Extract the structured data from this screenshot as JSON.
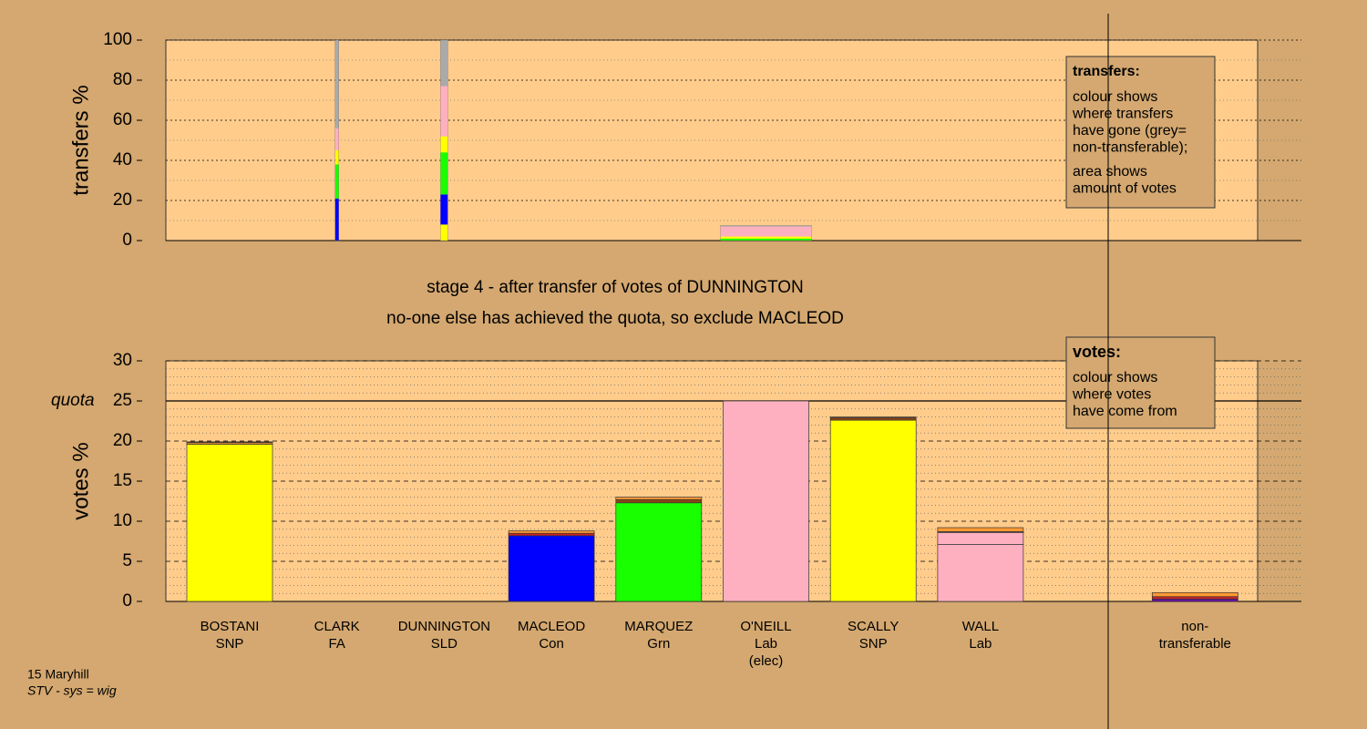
{
  "chart_data": [
    {
      "type": "transfer-columns",
      "ylabel": "transfers %",
      "ylim": [
        0,
        100
      ],
      "yticks": [
        0,
        20,
        40,
        60,
        80,
        100
      ],
      "grid": true,
      "minor_grid_per_tick": 2,
      "columns": [
        null,
        {
          "amount": 0.4,
          "segments": [
            {
              "color": "#0000ff",
              "value": 21
            },
            {
              "color": "#1aff00",
              "value": 17
            },
            {
              "color": "#ffff00",
              "value": 7
            },
            {
              "color": "#ffb0c0",
              "value": 11
            },
            {
              "color": "#aaaaaa",
              "value": 44
            }
          ]
        },
        {
          "amount": 0.8,
          "segments": [
            {
              "color": "#ffff00",
              "value": 8
            },
            {
              "color": "#0000ff",
              "value": 15
            },
            {
              "color": "#1aff00",
              "value": 21
            },
            {
              "color": "#ffff00",
              "value": 8
            },
            {
              "color": "#ffb0c0",
              "value": 25
            },
            {
              "color": "#aaaaaa",
              "value": 23
            }
          ]
        },
        null,
        null,
        {
          "amount": 10,
          "segments": [
            {
              "color": "#1aff00",
              "value": 1
            },
            {
              "color": "#ffff00",
              "value": 1
            },
            {
              "color": "#ffb0c0",
              "value": 5
            },
            {
              "color": "#aaaaaa",
              "value": 0.5
            }
          ]
        },
        null,
        null,
        null,
        null
      ],
      "legend": {
        "title": "transfers:",
        "lines": [
          "colour shows",
          "where transfers",
          "have gone (grey=",
          "non-transferable);",
          "area shows",
          "amount of votes"
        ]
      }
    },
    {
      "type": "stacked-bar",
      "title": "stage 4 - after transfer of votes of DUNNINGTON",
      "subtitle": "no-one else has achieved the quota, so exclude MACLEOD",
      "ylabel": "votes %",
      "ylim": [
        0,
        30
      ],
      "yticks": [
        0,
        5,
        10,
        15,
        20,
        25,
        30
      ],
      "grid": true,
      "minor_grid_per_tick": 5,
      "quota": 25,
      "quota_label": "quota",
      "categories": [
        [
          "BOSTANI",
          "SNP"
        ],
        [
          "CLARK",
          "FA"
        ],
        [
          "DUNNINGTON",
          "SLD"
        ],
        [
          "MACLEOD",
          "Con"
        ],
        [
          "MARQUEZ",
          "Grn"
        ],
        [
          "O'NEILL",
          "Lab",
          "(elec)"
        ],
        [
          "SCALLY",
          "SNP"
        ],
        [
          "WALL",
          "Lab"
        ],
        null,
        [
          "non-",
          "transferable"
        ]
      ],
      "bars": [
        {
          "segments": [
            {
              "color": "#ffff00",
              "value": 19.6
            },
            {
              "color": "#ff9933",
              "value": 0.2
            },
            {
              "color": "#8b4513",
              "value": 0.1
            }
          ]
        },
        {
          "segments": [
            {
              "color": "#000000",
              "value": 0
            }
          ]
        },
        {
          "segments": [
            {
              "color": "#000000",
              "value": 0
            }
          ]
        },
        {
          "segments": [
            {
              "color": "#0000ff",
              "value": 8.2
            },
            {
              "color": "#cc2222",
              "value": 0.3
            },
            {
              "color": "#ff9933",
              "value": 0.3
            }
          ]
        },
        {
          "segments": [
            {
              "color": "#1aff00",
              "value": 12.3
            },
            {
              "color": "#8b4513",
              "value": 0.4
            },
            {
              "color": "#ff9933",
              "value": 0.3
            }
          ]
        },
        {
          "segments": [
            {
              "color": "#ffb0c0",
              "value": 25
            }
          ]
        },
        {
          "segments": [
            {
              "color": "#ffff00",
              "value": 22.6
            },
            {
              "color": "#8b4513",
              "value": 0.3
            },
            {
              "color": "#ff9933",
              "value": 0.1
            }
          ]
        },
        {
          "segments": [
            {
              "color": "#ffb0c0",
              "value": 7.1
            },
            {
              "color": "#ffb0c0",
              "value": 1.5
            },
            {
              "color": "#8b4513",
              "value": 0.1
            },
            {
              "color": "#ff9933",
              "value": 0.5
            }
          ]
        },
        null,
        {
          "segments": [
            {
              "color": "#6a0dad",
              "value": 0.3
            },
            {
              "color": "#cc2222",
              "value": 0.3
            },
            {
              "color": "#ff9933",
              "value": 0.5
            }
          ]
        }
      ],
      "legend": {
        "title": "votes:",
        "lines": [
          "colour shows",
          "where votes",
          "have come from"
        ]
      }
    }
  ],
  "footer": {
    "constituency": "15 Maryhill",
    "system": "STV - sys = wig"
  }
}
